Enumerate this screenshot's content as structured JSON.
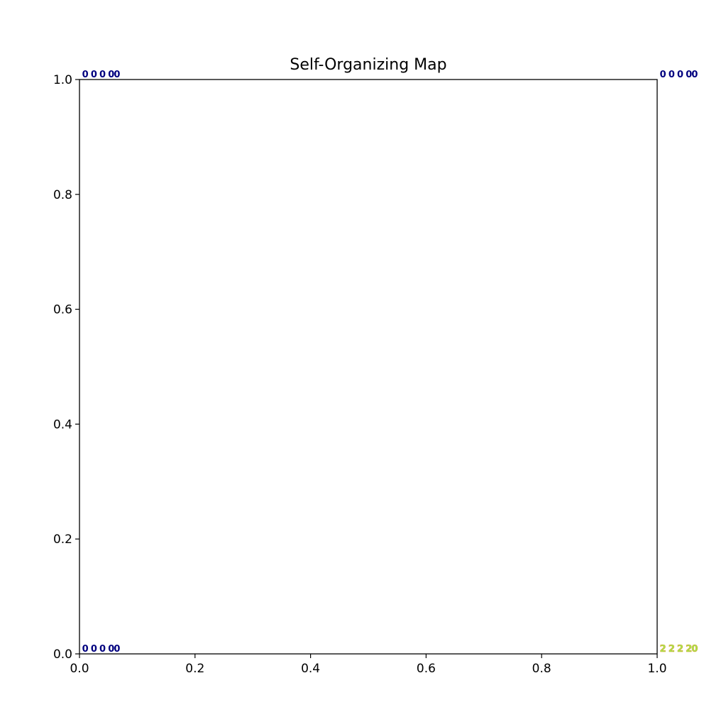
{
  "chart_data": {
    "type": "scatter",
    "title": "Self-Organizing Map",
    "xlabel": "",
    "ylabel": "",
    "xlim": [
      0.0,
      1.0
    ],
    "ylim": [
      0.0,
      1.0
    ],
    "grid": false,
    "x_ticks": [
      "0.0",
      "0.2",
      "0.4",
      "0.6",
      "0.8",
      "1.0"
    ],
    "y_ticks": [
      "0.0",
      "0.2",
      "0.4",
      "0.6",
      "0.8",
      "1.0"
    ],
    "marker_offsets_x": [
      0.01,
      0.025,
      0.04,
      0.055,
      0.065
    ],
    "marker_offset_y": 0.01,
    "series": [
      {
        "x": 0,
        "y": 1,
        "color": "#00007f",
        "labels": [
          "0",
          "0",
          "0",
          "0",
          "0"
        ]
      },
      {
        "x": 1,
        "y": 1,
        "color": "#00007f",
        "labels": [
          "0",
          "0",
          "0",
          "0",
          "0"
        ]
      },
      {
        "x": 0,
        "y": 0,
        "color": "#00007f",
        "labels": [
          "0",
          "0",
          "0",
          "0",
          "0"
        ]
      },
      {
        "x": 1,
        "y": 0,
        "color": "#9cf050",
        "edge_color": "#e0a030",
        "labels": [
          "2",
          "2",
          "2",
          "2",
          "0"
        ]
      }
    ]
  }
}
